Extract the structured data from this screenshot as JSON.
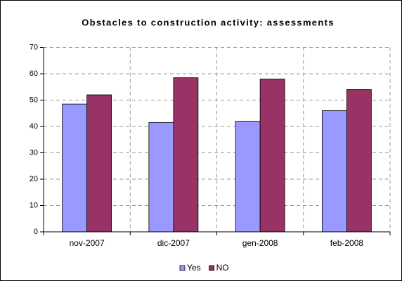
{
  "chart_data": {
    "type": "bar",
    "title": "Obstacles to construction activity: assessments",
    "categories": [
      "nov-2007",
      "dic-2007",
      "gen-2008",
      "feb-2008"
    ],
    "series": [
      {
        "name": "Yes",
        "color": "#9999ff",
        "values": [
          48.5,
          41.5,
          42,
          46
        ]
      },
      {
        "name": "NO",
        "color": "#993366",
        "values": [
          52,
          58.5,
          58,
          54
        ]
      }
    ],
    "ylim": [
      0,
      70
    ],
    "yticks": [
      0,
      10,
      20,
      30,
      40,
      50,
      60,
      70
    ],
    "grid": true,
    "legend": "bottom"
  }
}
